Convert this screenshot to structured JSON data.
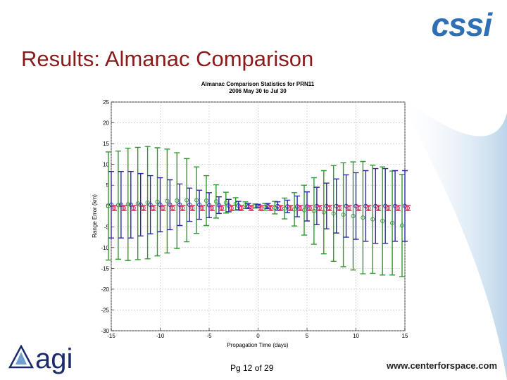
{
  "header": {
    "title": "Results: Almanac Comparison"
  },
  "logos": {
    "top_right": "cssi",
    "bottom_left": "agi"
  },
  "footer": {
    "page": "Pg 12 of 29",
    "url": "www.centerforspace.com"
  },
  "chart_data": {
    "type": "errorbar",
    "title": "Almanac Comparison Statistics for PRN11",
    "subtitle": "2006 May 30 to Jul 30",
    "x_label": "Propagation Time (days)",
    "y_label": "Range Error (km)",
    "x": [
      -15,
      -14,
      -13,
      -12,
      -11,
      -10,
      -9,
      -8,
      -7,
      -6,
      -5,
      -4,
      -3,
      -2,
      -1,
      0,
      1,
      2,
      3,
      4,
      5,
      6,
      7,
      8,
      9,
      10,
      11,
      12,
      13,
      14,
      15
    ],
    "series": [
      {
        "color": "#2f9a2f",
        "values": [
          0,
          0.2,
          0.4,
          0.6,
          0.8,
          1.0,
          1.2,
          1.3,
          1.4,
          1.4,
          1.3,
          1.1,
          0.8,
          0.5,
          0.2,
          0,
          -0.2,
          -0.4,
          -0.6,
          -0.8,
          -1.0,
          -1.2,
          -1.5,
          -1.8,
          -2.1,
          -2.4,
          -2.8,
          -3.2,
          -3.6,
          -4.1,
          -4.7
        ],
        "errors": [
          13,
          13,
          13.5,
          13.5,
          13.5,
          13,
          12.5,
          11.5,
          10,
          8,
          6,
          4,
          2.5,
          1.5,
          0.8,
          0.5,
          0.8,
          1.5,
          2.5,
          4,
          6,
          8,
          10,
          11.5,
          12.5,
          13,
          13.5,
          13,
          13,
          12.5,
          12.3
        ]
      },
      {
        "color": "#2a2aa8",
        "values": [
          0.3,
          0.3,
          0.3,
          0.3,
          0.3,
          0.3,
          0.3,
          0.3,
          0.3,
          0.3,
          0.2,
          0.2,
          0.1,
          0.1,
          0,
          0,
          0,
          0,
          -0.1,
          -0.1,
          -0.1,
          0,
          0,
          0,
          0,
          0,
          0,
          0,
          0,
          0,
          0
        ],
        "errors": [
          8,
          8,
          8,
          7.5,
          7,
          6.5,
          6,
          5,
          4,
          3.5,
          3,
          2,
          1.5,
          1,
          0.6,
          0.4,
          0.6,
          1,
          1.5,
          2.5,
          3.5,
          4.5,
          5.5,
          6.5,
          7.5,
          8,
          8.5,
          9,
          9,
          8.5,
          8.5
        ]
      },
      {
        "color": "#e0305a",
        "values": [
          -0.5,
          -0.5,
          -0.5,
          -0.5,
          -0.5,
          -0.5,
          -0.5,
          -0.5,
          -0.5,
          -0.5,
          -0.5,
          -0.5,
          -0.5,
          -0.5,
          -0.5,
          -0.5,
          -0.5,
          -0.5,
          -0.5,
          -0.5,
          -0.5,
          -0.5,
          -0.5,
          -0.5,
          -0.5,
          -0.5,
          -0.5,
          -0.5,
          -0.5,
          -0.5,
          -0.5
        ],
        "errors": [
          0.6,
          0.6,
          0.6,
          0.6,
          0.6,
          0.6,
          0.6,
          0.6,
          0.6,
          0.6,
          0.6,
          0.6,
          0.6,
          0.6,
          0.6,
          0.6,
          0.6,
          0.6,
          0.6,
          0.6,
          0.6,
          0.6,
          0.6,
          0.6,
          0.6,
          0.6,
          0.6,
          0.6,
          0.6,
          0.6,
          0.6
        ]
      }
    ],
    "xlim": [
      -15,
      15
    ],
    "xticks": [
      -15,
      -10,
      -5,
      0,
      5,
      10,
      15
    ],
    "ylim": [
      -30,
      25
    ],
    "yticks": [
      -30,
      -25,
      -20,
      -15,
      -10,
      -5,
      0,
      5,
      10,
      15,
      20,
      25
    ],
    "grid": true
  }
}
